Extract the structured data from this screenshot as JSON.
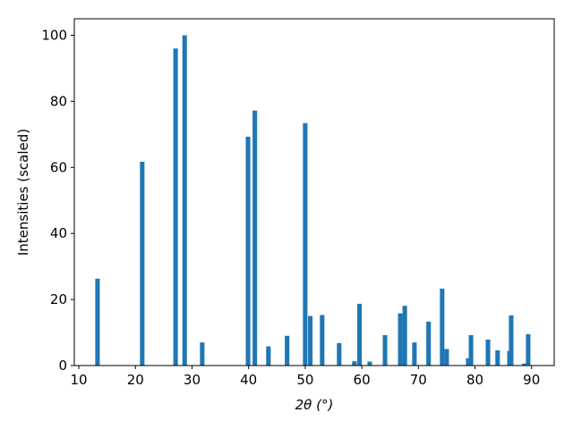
{
  "chart_data": {
    "type": "bar",
    "x_label": "2θ (°)",
    "y_label": "Intensities (scaled)",
    "x": [
      13.3,
      21.2,
      27.1,
      28.7,
      31.8,
      39.9,
      41.1,
      43.5,
      46.8,
      50.0,
      50.9,
      53.0,
      56.0,
      58.7,
      59.6,
      61.4,
      64.1,
      66.8,
      67.6,
      69.3,
      71.8,
      74.2,
      75.0,
      78.8,
      79.3,
      82.3,
      84.0,
      86.1,
      86.4,
      88.7,
      89.4
    ],
    "values": [
      26.3,
      61.7,
      96,
      100,
      7,
      69.3,
      77.2,
      5.8,
      9,
      73.4,
      15,
      15.3,
      6.8,
      1.3,
      18.7,
      1.2,
      9.2,
      15.8,
      18.1,
      7,
      13.3,
      23.3,
      5,
      2.2,
      9.2,
      7.9,
      4.6,
      4.4,
      15.2,
      0.6,
      9.5
    ],
    "color": "#1f77b4",
    "xlim": [
      9.2,
      94.0
    ],
    "xticks": [
      10,
      20,
      30,
      40,
      50,
      60,
      70,
      80,
      90
    ],
    "ylim": [
      0,
      105
    ],
    "yticks": [
      0,
      20,
      40,
      60,
      80,
      100
    ]
  }
}
